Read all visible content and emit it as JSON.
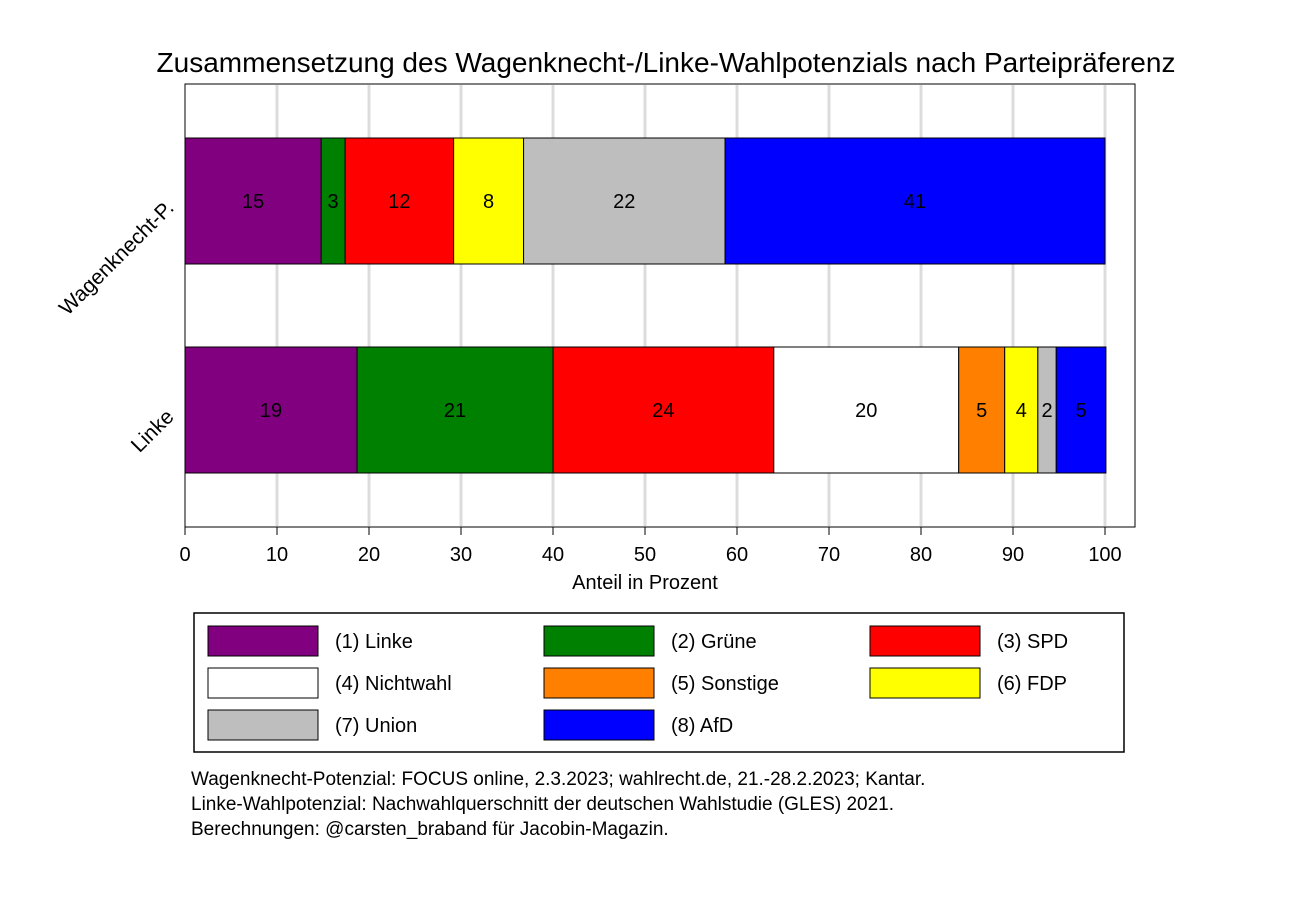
{
  "chart_data": {
    "type": "bar",
    "orientation": "horizontal",
    "stacked": true,
    "title": "Zusammensetzung des Wagenknecht-/Linke-Wahlpotenzials nach Parteipräferenz",
    "xlabel": "Anteil in Prozent",
    "ylabel": "",
    "xlim": [
      0,
      100
    ],
    "xticks": [
      "0",
      "10",
      "20",
      "30",
      "40",
      "50",
      "60",
      "70",
      "80",
      "90",
      "100"
    ],
    "grid": true,
    "legend_position": "bottom",
    "categories": [
      "Wagenknecht-P.",
      "Linke"
    ],
    "series": [
      {
        "name": "(1) Linke",
        "color": "#800080",
        "values": [
          14.8,
          18.7
        ],
        "labels": [
          "15",
          "19"
        ]
      },
      {
        "name": "(2) Grüne",
        "color": "#008000",
        "values": [
          2.6,
          21.3
        ],
        "labels": [
          "3",
          "21"
        ]
      },
      {
        "name": "(3) SPD",
        "color": "#ff0000",
        "values": [
          11.8,
          24.0
        ],
        "labels": [
          "12",
          "24"
        ]
      },
      {
        "name": "(4) Nichtwahl",
        "color": "#ffffff",
        "values": [
          0,
          20.1
        ],
        "labels": [
          "",
          "20"
        ]
      },
      {
        "name": "(5) Sonstige",
        "color": "#ff8000",
        "values": [
          0,
          5.0
        ],
        "labels": [
          "",
          "5"
        ]
      },
      {
        "name": "(6) FDP",
        "color": "#ffff00",
        "values": [
          7.6,
          3.6
        ],
        "labels": [
          "8",
          "4"
        ]
      },
      {
        "name": "(7) Union",
        "color": "#bebebe",
        "values": [
          21.9,
          2.0
        ],
        "labels": [
          "22",
          "2"
        ]
      },
      {
        "name": "(8) AfD",
        "color": "#0000ff",
        "values": [
          41.3,
          5.4
        ],
        "labels": [
          "41",
          "5"
        ]
      }
    ]
  },
  "notes": [
    "Wagenknecht-Potenzial: FOCUS online, 2.3.2023; wahlrecht.de, 21.-28.2.2023; Kantar.",
    "Linke-Wahlpotenzial: Nachwahlquerschnitt der deutschen Wahlstudie (GLES) 2021.",
    "Berechnungen: @carsten_braband für Jacobin-Magazin."
  ]
}
